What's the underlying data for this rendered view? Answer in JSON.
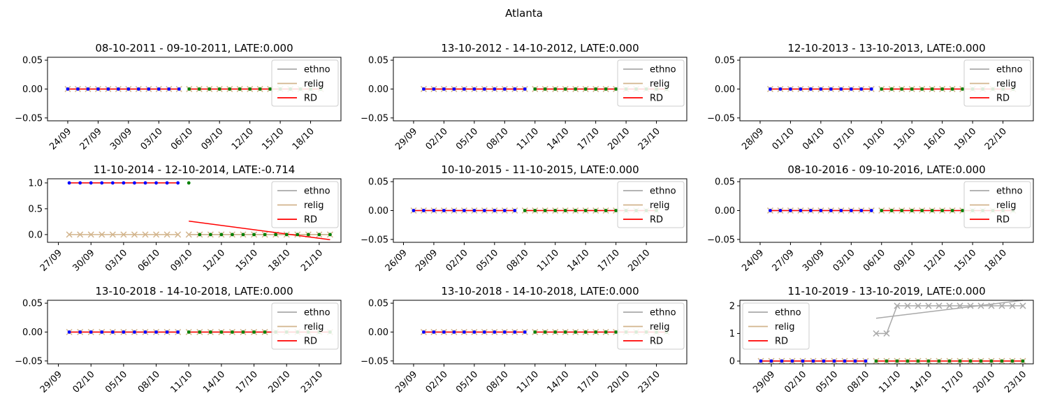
{
  "figure_title": "Atlanta",
  "colors": {
    "ethno": "#a9a9a9",
    "relig": "#d2b48c",
    "rd": "#ff0000",
    "before_dot": "#0000ff",
    "after_dot": "#008000"
  },
  "chart_data": [
    {
      "type": "line",
      "title": "08-10-2011 - 09-10-2011, LATE:0.000",
      "xlim": [
        "2011-09-22",
        "2011-10-21"
      ],
      "xticks": [
        "24/09",
        "27/09",
        "30/09",
        "03/10",
        "06/10",
        "09/10",
        "12/10",
        "15/10",
        "18/10"
      ],
      "xtick_dates": [
        "2011-09-24",
        "2011-09-27",
        "2011-09-30",
        "2011-10-03",
        "2011-10-06",
        "2011-10-09",
        "2011-10-12",
        "2011-10-15",
        "2011-10-18"
      ],
      "ylim": [
        -0.055,
        0.055
      ],
      "yticks": [
        -0.05,
        0.0,
        0.05
      ],
      "ytick_labels": [
        "−0.05",
        "0.00",
        "0.05"
      ],
      "legend": {
        "position": "upper right",
        "entries": [
          "ethno",
          "relig",
          "RD"
        ]
      },
      "before": {
        "start": "2011-09-24",
        "end": "2011-10-05",
        "ethno": 0,
        "relig": 0
      },
      "after": {
        "start": "2011-10-06",
        "end": "2011-10-19",
        "ethno": 0,
        "relig": 0
      },
      "rd_before": {
        "start": "2011-09-24",
        "end": "2011-10-05",
        "y0": 0,
        "y1": 0
      },
      "rd_after": {
        "start": "2011-10-06",
        "end": "2011-10-19",
        "y0": 0,
        "y1": 0
      }
    },
    {
      "type": "line",
      "title": "13-10-2012 - 14-10-2012, LATE:0.000",
      "xlim": [
        "2012-09-27",
        "2012-10-26"
      ],
      "xticks": [
        "29/09",
        "02/10",
        "05/10",
        "08/10",
        "11/10",
        "14/10",
        "17/10",
        "20/10",
        "23/10"
      ],
      "xtick_dates": [
        "2012-09-29",
        "2012-10-02",
        "2012-10-05",
        "2012-10-08",
        "2012-10-11",
        "2012-10-14",
        "2012-10-17",
        "2012-10-20",
        "2012-10-23"
      ],
      "ylim": [
        -0.055,
        0.055
      ],
      "yticks": [
        -0.05,
        0.0,
        0.05
      ],
      "ytick_labels": [
        "−0.05",
        "0.00",
        "0.05"
      ],
      "legend": {
        "position": "upper right",
        "entries": [
          "ethno",
          "relig",
          "RD"
        ]
      },
      "before": {
        "start": "2012-09-30",
        "end": "2012-10-10",
        "ethno": 0,
        "relig": 0
      },
      "after": {
        "start": "2012-10-11",
        "end": "2012-10-24",
        "ethno": 0,
        "relig": 0
      },
      "rd_before": {
        "start": "2012-09-30",
        "end": "2012-10-10",
        "y0": 0,
        "y1": 0
      },
      "rd_after": {
        "start": "2012-10-11",
        "end": "2012-10-24",
        "y0": 0,
        "y1": 0
      }
    },
    {
      "type": "line",
      "title": "12-10-2013 - 13-10-2013, LATE:0.000",
      "xlim": [
        "2013-09-26",
        "2013-10-25"
      ],
      "xticks": [
        "28/09",
        "01/10",
        "04/10",
        "07/10",
        "10/10",
        "13/10",
        "16/10",
        "19/10",
        "22/10"
      ],
      "xtick_dates": [
        "2013-09-28",
        "2013-10-01",
        "2013-10-04",
        "2013-10-07",
        "2013-10-10",
        "2013-10-13",
        "2013-10-16",
        "2013-10-19",
        "2013-10-22"
      ],
      "ylim": [
        -0.055,
        0.055
      ],
      "yticks": [
        -0.05,
        0.0,
        0.05
      ],
      "ytick_labels": [
        "−0.05",
        "0.00",
        "0.05"
      ],
      "legend": {
        "position": "upper right",
        "entries": [
          "ethno",
          "relig",
          "RD"
        ]
      },
      "before": {
        "start": "2013-09-29",
        "end": "2013-10-09",
        "ethno": 0,
        "relig": 0
      },
      "after": {
        "start": "2013-10-10",
        "end": "2013-10-23",
        "ethno": 0,
        "relig": 0
      },
      "rd_before": {
        "start": "2013-09-29",
        "end": "2013-10-09",
        "y0": 0,
        "y1": 0
      },
      "rd_after": {
        "start": "2013-10-10",
        "end": "2013-10-23",
        "y0": 0,
        "y1": 0
      }
    },
    {
      "type": "line",
      "title": "11-10-2014 - 12-10-2014, LATE:-0.714",
      "xlim": [
        "2014-09-26",
        "2014-10-23"
      ],
      "xticks": [
        "27/09",
        "30/09",
        "03/10",
        "06/10",
        "09/10",
        "12/10",
        "15/10",
        "18/10",
        "21/10"
      ],
      "xtick_dates": [
        "2014-09-27",
        "2014-09-30",
        "2014-10-03",
        "2014-10-06",
        "2014-10-09",
        "2014-10-12",
        "2014-10-15",
        "2014-10-18",
        "2014-10-21"
      ],
      "ylim": [
        -0.15,
        1.08
      ],
      "yticks": [
        0.0,
        0.5,
        1.0
      ],
      "ytick_labels": [
        "0.0",
        "0.5",
        "1.0"
      ],
      "legend": {
        "position": "upper right",
        "entries": [
          "ethno",
          "relig",
          "RD"
        ]
      },
      "before": {
        "start": "2014-09-28",
        "end": "2014-10-08",
        "ethno": 1,
        "relig": 0
      },
      "after": {
        "start": "2014-10-09",
        "end": "2014-10-22",
        "ethno": 0,
        "relig": 0
      },
      "before_dots": [
        1,
        1,
        1,
        1,
        1,
        1,
        1,
        1,
        1,
        1,
        1
      ],
      "after_dots": [
        1,
        0,
        0,
        0,
        0,
        0,
        0,
        0,
        0,
        0,
        0,
        0,
        0,
        0
      ],
      "rd_before": {
        "start": "2014-09-28",
        "end": "2014-10-08",
        "y0": 1,
        "y1": 1
      },
      "rd_after": {
        "start": "2014-10-09",
        "end": "2014-10-22",
        "y0": 0.26,
        "y1": -0.1
      }
    },
    {
      "type": "line",
      "title": "10-10-2015 - 11-10-2015, LATE:0.000",
      "xlim": [
        "2015-09-25",
        "2015-10-24"
      ],
      "xticks": [
        "26/09",
        "29/09",
        "02/10",
        "05/10",
        "08/10",
        "11/10",
        "14/10",
        "17/10",
        "20/10"
      ],
      "xtick_dates": [
        "2015-09-26",
        "2015-09-29",
        "2015-10-02",
        "2015-10-05",
        "2015-10-08",
        "2015-10-11",
        "2015-10-14",
        "2015-10-17",
        "2015-10-20"
      ],
      "ylim": [
        -0.055,
        0.055
      ],
      "yticks": [
        -0.05,
        0.0,
        0.05
      ],
      "ytick_labels": [
        "−0.05",
        "0.00",
        "0.05"
      ],
      "legend": {
        "position": "upper right",
        "entries": [
          "ethno",
          "relig",
          "RD"
        ]
      },
      "before": {
        "start": "2015-09-27",
        "end": "2015-10-07",
        "ethno": 0,
        "relig": 0
      },
      "after": {
        "start": "2015-10-08",
        "end": "2015-10-21",
        "ethno": 0,
        "relig": 0
      },
      "rd_before": {
        "start": "2015-09-27",
        "end": "2015-10-07",
        "y0": 0,
        "y1": 0
      },
      "rd_after": {
        "start": "2015-10-08",
        "end": "2015-10-21",
        "y0": 0,
        "y1": 0
      }
    },
    {
      "type": "line",
      "title": "08-10-2016 - 09-10-2016, LATE:0.000",
      "xlim": [
        "2016-09-22",
        "2016-10-21"
      ],
      "xticks": [
        "24/09",
        "27/09",
        "30/09",
        "03/10",
        "06/10",
        "09/10",
        "12/10",
        "15/10",
        "18/10"
      ],
      "xtick_dates": [
        "2016-09-24",
        "2016-09-27",
        "2016-09-30",
        "2016-10-03",
        "2016-10-06",
        "2016-10-09",
        "2016-10-12",
        "2016-10-15",
        "2016-10-18"
      ],
      "ylim": [
        -0.055,
        0.055
      ],
      "yticks": [
        -0.05,
        0.0,
        0.05
      ],
      "ytick_labels": [
        "−0.05",
        "0.00",
        "0.05"
      ],
      "legend": {
        "position": "upper right",
        "entries": [
          "ethno",
          "relig",
          "RD"
        ]
      },
      "before": {
        "start": "2016-09-25",
        "end": "2016-10-05",
        "ethno": 0,
        "relig": 0
      },
      "after": {
        "start": "2016-10-06",
        "end": "2016-10-19",
        "ethno": 0,
        "relig": 0
      },
      "rd_before": {
        "start": "2016-09-25",
        "end": "2016-10-05",
        "y0": 0,
        "y1": 0
      },
      "rd_after": {
        "start": "2016-10-06",
        "end": "2016-10-19",
        "y0": 0,
        "y1": 0
      }
    },
    {
      "type": "line",
      "title": "13-10-2018 - 14-10-2018, LATE:0.000",
      "xlim": [
        "2018-09-28",
        "2018-10-25"
      ],
      "xticks": [
        "29/09",
        "02/10",
        "05/10",
        "08/10",
        "11/10",
        "14/10",
        "17/10",
        "20/10",
        "23/10"
      ],
      "xtick_dates": [
        "2018-09-29",
        "2018-10-02",
        "2018-10-05",
        "2018-10-08",
        "2018-10-11",
        "2018-10-14",
        "2018-10-17",
        "2018-10-20",
        "2018-10-23"
      ],
      "ylim": [
        -0.055,
        0.055
      ],
      "yticks": [
        -0.05,
        0.0,
        0.05
      ],
      "ytick_labels": [
        "−0.05",
        "0.00",
        "0.05"
      ],
      "legend": {
        "position": "upper right",
        "entries": [
          "ethno",
          "relig",
          "RD"
        ]
      },
      "before": {
        "start": "2018-09-30",
        "end": "2018-10-10",
        "ethno": 0,
        "relig": 0
      },
      "after": {
        "start": "2018-10-11",
        "end": "2018-10-24",
        "ethno": 0,
        "relig": 0
      },
      "rd_before": {
        "start": "2018-09-30",
        "end": "2018-10-10",
        "y0": 0,
        "y1": 0
      },
      "rd_after": {
        "start": "2018-10-11",
        "end": "2018-10-24",
        "y0": 0,
        "y1": 0
      }
    },
    {
      "type": "line",
      "title": "13-10-2018 - 14-10-2018, LATE:0.000",
      "xlim": [
        "2018-09-27",
        "2018-10-26"
      ],
      "xticks": [
        "29/09",
        "02/10",
        "05/10",
        "08/10",
        "11/10",
        "14/10",
        "17/10",
        "20/10",
        "23/10"
      ],
      "xtick_dates": [
        "2018-09-29",
        "2018-10-02",
        "2018-10-05",
        "2018-10-08",
        "2018-10-11",
        "2018-10-14",
        "2018-10-17",
        "2018-10-20",
        "2018-10-23"
      ],
      "ylim": [
        -0.055,
        0.055
      ],
      "yticks": [
        -0.05,
        0.0,
        0.05
      ],
      "ytick_labels": [
        "−0.05",
        "0.00",
        "0.05"
      ],
      "legend": {
        "position": "upper right",
        "entries": [
          "ethno",
          "relig",
          "RD"
        ]
      },
      "before": {
        "start": "2018-09-30",
        "end": "2018-10-10",
        "ethno": 0,
        "relig": 0
      },
      "after": {
        "start": "2018-10-11",
        "end": "2018-10-24",
        "ethno": 0,
        "relig": 0
      },
      "rd_before": {
        "start": "2018-09-30",
        "end": "2018-10-10",
        "y0": 0,
        "y1": 0
      },
      "rd_after": {
        "start": "2018-10-11",
        "end": "2018-10-24",
        "y0": 0,
        "y1": 0
      }
    },
    {
      "type": "line",
      "title": "11-10-2019 - 13-10-2019, LATE:0.000",
      "xlim": [
        "2019-09-26",
        "2019-10-24"
      ],
      "xticks": [
        "29/09",
        "02/10",
        "05/10",
        "08/10",
        "11/10",
        "14/10",
        "17/10",
        "20/10",
        "23/10"
      ],
      "xtick_dates": [
        "2019-09-29",
        "2019-10-02",
        "2019-10-05",
        "2019-10-08",
        "2019-10-11",
        "2019-10-14",
        "2019-10-17",
        "2019-10-20",
        "2019-10-23"
      ],
      "ylim": [
        -0.1,
        2.2
      ],
      "yticks": [
        0,
        1,
        2
      ],
      "ytick_labels": [
        "0",
        "1",
        "2"
      ],
      "legend": {
        "position": "upper left",
        "entries": [
          "ethno",
          "relig",
          "RD"
        ]
      },
      "before": {
        "start": "2019-09-28",
        "end": "2019-10-08",
        "ethno": 0,
        "relig": 0
      },
      "after": {
        "start": "2019-10-09",
        "end": "2019-10-23",
        "ethno": 2,
        "relig": 0
      },
      "ethno_after_values": [
        1,
        1,
        2,
        2,
        2,
        2,
        2,
        2,
        2,
        2,
        2,
        2,
        2,
        2,
        2
      ],
      "ethno_fit_after": {
        "start": "2019-10-09",
        "end": "2019-10-23",
        "y0": 1.55,
        "y1": 2.2
      },
      "rd_before": {
        "start": "2019-09-28",
        "end": "2019-10-08",
        "y0": 0,
        "y1": 0
      },
      "rd_after": {
        "start": "2019-10-09",
        "end": "2019-10-23",
        "y0": 0,
        "y1": 0
      }
    }
  ]
}
